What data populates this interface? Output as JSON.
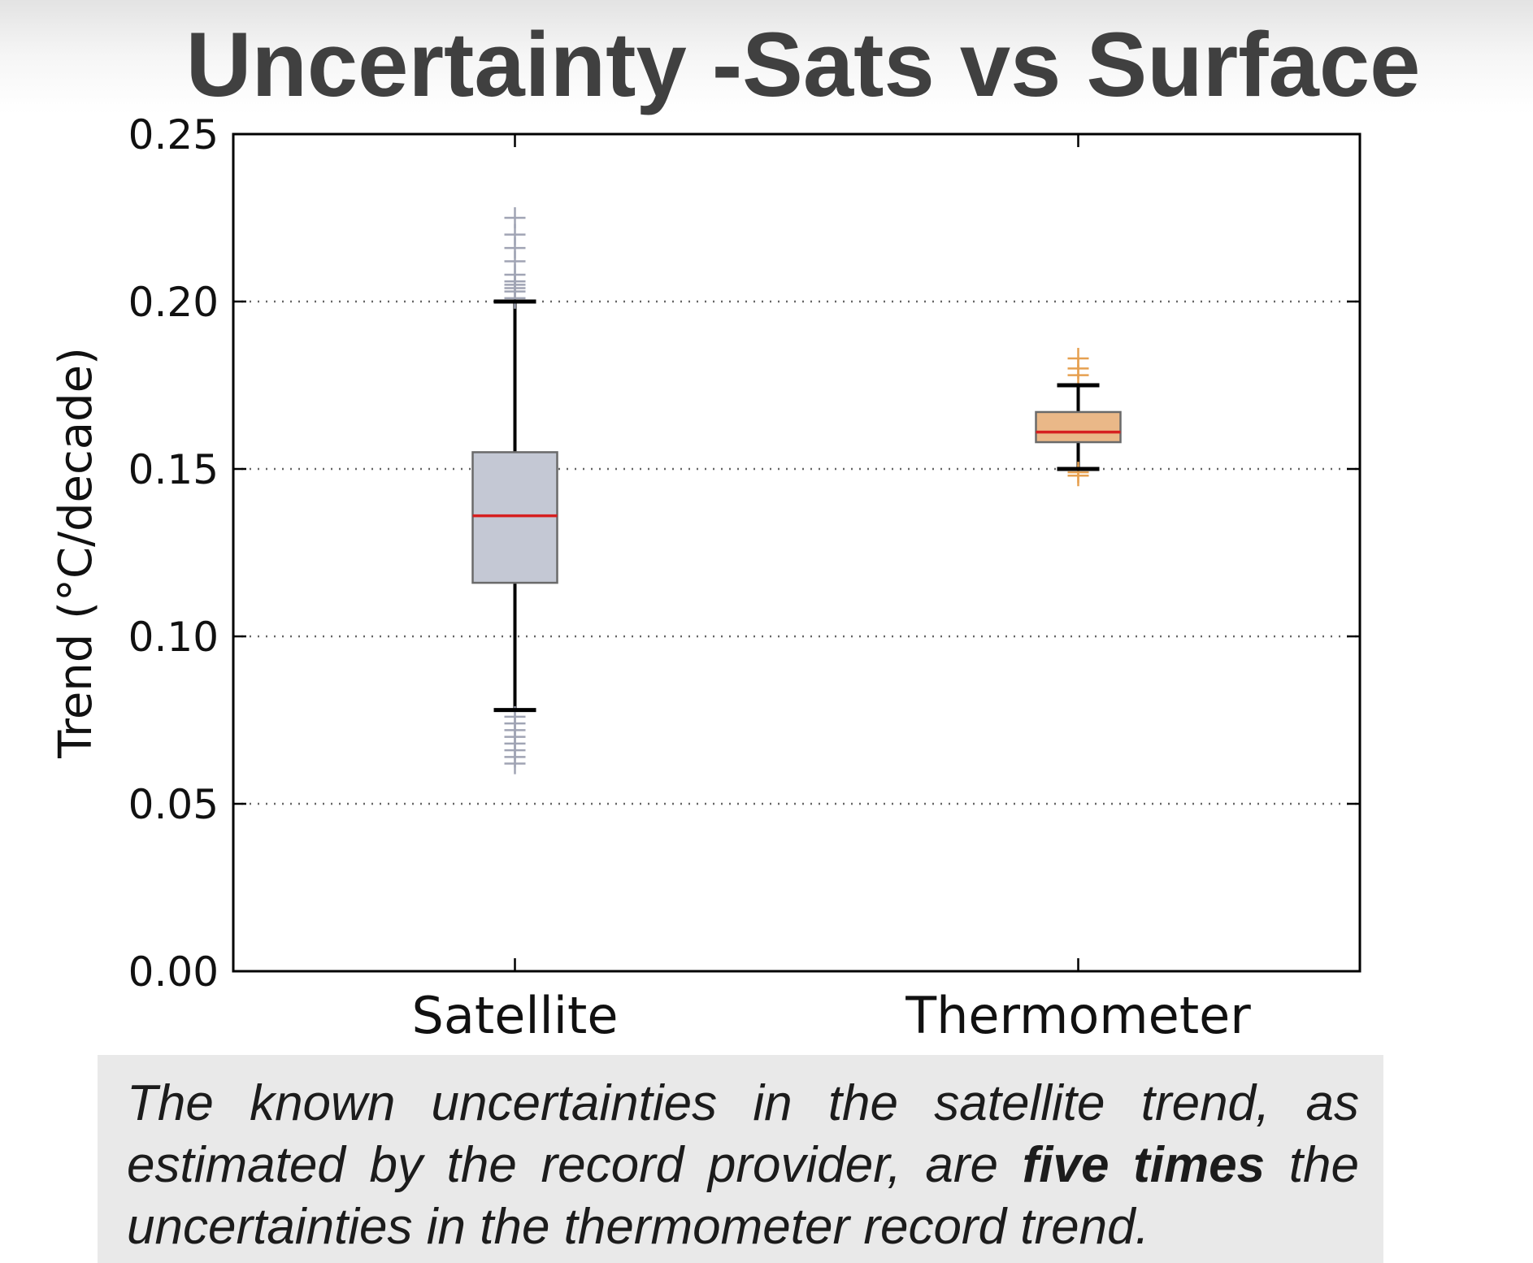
{
  "title": "Uncertainty -Sats vs Surface",
  "caption": {
    "before": "The known uncertainties in the satellite trend, as estimated by the record provider, are ",
    "emphasis": "five times",
    "after": " the uncertainties in the thermometer record trend."
  },
  "chart_data": {
    "type": "boxplot",
    "ylabel": "Trend (°C/decade)",
    "ylim": [
      0.0,
      0.25
    ],
    "yticks": [
      0.0,
      0.05,
      0.1,
      0.15,
      0.2,
      0.25
    ],
    "ytick_labels": [
      "0.00",
      "0.05",
      "0.10",
      "0.15",
      "0.20",
      "0.25"
    ],
    "grid": "horizontal-dotted",
    "categories": [
      "Satellite",
      "Thermometer"
    ],
    "boxes": [
      {
        "category": "Satellite",
        "whisker_low": 0.078,
        "q1": 0.116,
        "median": 0.136,
        "q3": 0.155,
        "whisker_high": 0.2,
        "outliers_high": [
          0.201,
          0.203,
          0.204,
          0.205,
          0.206,
          0.208,
          0.212,
          0.216,
          0.22,
          0.225
        ],
        "outliers_low": [
          0.076,
          0.074,
          0.072,
          0.07,
          0.068,
          0.066,
          0.064,
          0.062
        ],
        "box_color": "#c4c8d4",
        "flier_color": "#a0a4b4"
      },
      {
        "category": "Thermometer",
        "whisker_low": 0.15,
        "q1": 0.158,
        "median": 0.161,
        "q3": 0.167,
        "whisker_high": 0.175,
        "outliers_high": [
          0.178,
          0.18,
          0.183
        ],
        "outliers_low": [
          0.149,
          0.148
        ],
        "box_color": "#eab888",
        "flier_color": "#e6a050"
      }
    ],
    "median_color": "#d62020",
    "whisker_color": "#000000"
  }
}
